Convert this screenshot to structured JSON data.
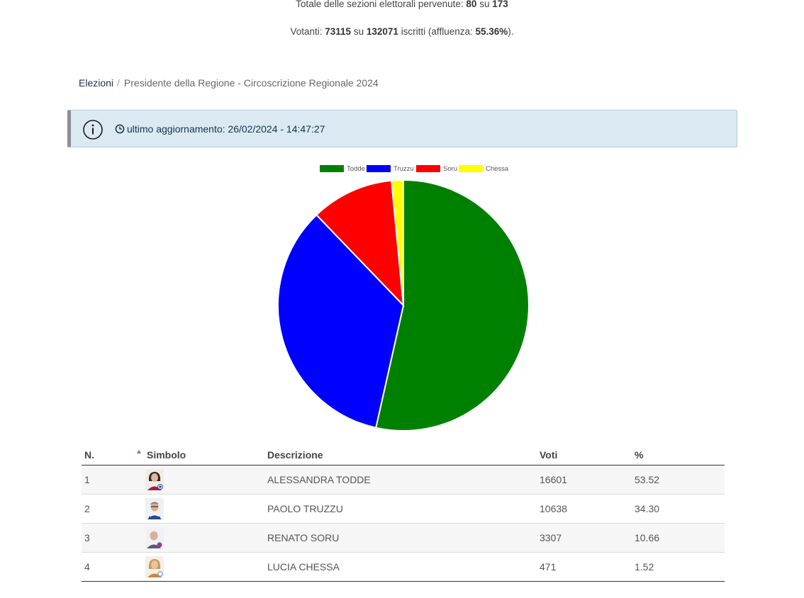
{
  "summary": {
    "sections_label": "Totale delle sezioni elettorali pervenute:",
    "sections_received": "80",
    "sections_of": "su",
    "sections_total": "173",
    "voters_label": "Votanti:",
    "voters": "73115",
    "voters_of": "su",
    "registered": "132071",
    "registered_label": "iscritti (affluenza:",
    "turnout": "55.36%",
    "turnout_close": ")."
  },
  "breadcrumb": {
    "home": "Elezioni",
    "separator": "/",
    "current": "Presidente della Regione - Circoscrizione Regionale 2024"
  },
  "alert": {
    "message": "ultimo aggiornamento: 26/02/2024 - 14:47:27",
    "icon": "info-icon",
    "clock_icon": "clock-icon"
  },
  "chart_data": {
    "type": "pie",
    "legend_position": "top",
    "categories": [
      "Todde",
      "Truzzu",
      "Soru",
      "Chessa"
    ],
    "values": [
      16601,
      10638,
      3307,
      471
    ],
    "percent": [
      53.52,
      34.3,
      10.66,
      1.52
    ],
    "colors": [
      "#008000",
      "#0000ff",
      "#ff0000",
      "#ffff00"
    ]
  },
  "table": {
    "headers": {
      "n": "N.",
      "symbol": "Simbolo",
      "description": "Descrizione",
      "votes": "Voti",
      "percent": "%"
    },
    "rows": [
      {
        "n": "1",
        "description": "ALESSANDRA TODDE",
        "votes": "16601",
        "percent": "53.52",
        "avatar": "candidate-photo-todde"
      },
      {
        "n": "2",
        "description": "PAOLO TRUZZU",
        "votes": "10638",
        "percent": "34.30",
        "avatar": "candidate-photo-truzzu"
      },
      {
        "n": "3",
        "description": "RENATO SORU",
        "votes": "3307",
        "percent": "10.66",
        "avatar": "candidate-photo-soru"
      },
      {
        "n": "4",
        "description": "LUCIA CHESSA",
        "votes": "471",
        "percent": "1.52",
        "avatar": "candidate-photo-chessa"
      }
    ]
  }
}
